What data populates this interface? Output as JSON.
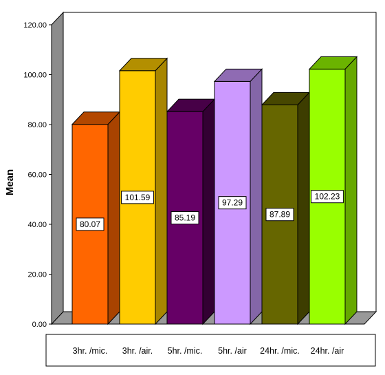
{
  "chart_data": {
    "type": "bar",
    "categories": [
      "3hr. /mic.",
      "3hr. /air.",
      "5hr. /mic.",
      "5hr. /air",
      "24hr. /mic.",
      "24hr. /air"
    ],
    "values": [
      80.07,
      101.59,
      85.19,
      97.29,
      87.89,
      102.23
    ],
    "data_labels": [
      "80.07",
      "101.59",
      "85.19",
      "97.29",
      "87.89",
      "102.23"
    ],
    "y_ticks": [
      "0.00",
      "20.00",
      "40.00",
      "60.00",
      "80.00",
      "100.00",
      "120.00"
    ],
    "ylim": [
      0,
      120
    ],
    "ylabel": "Mean",
    "xlabel": "",
    "title": "",
    "grid": false,
    "legend": "none",
    "three_d": true,
    "colors": {
      "front": [
        "#ff6600",
        "#ffcc00",
        "#660066",
        "#cc99ff",
        "#666600",
        "#99ff00"
      ],
      "side": [
        "#a84300",
        "#a88600",
        "#330033",
        "#8466a8",
        "#3d3d00",
        "#66a800"
      ],
      "top": [
        "#b34700",
        "#b38f00",
        "#470047",
        "#8f6bb3",
        "#474700",
        "#6bb300"
      ],
      "back_wall": "#ffffff",
      "side_wall": "#8c8c8c",
      "floor": "#999999",
      "axis": "#000000"
    }
  }
}
